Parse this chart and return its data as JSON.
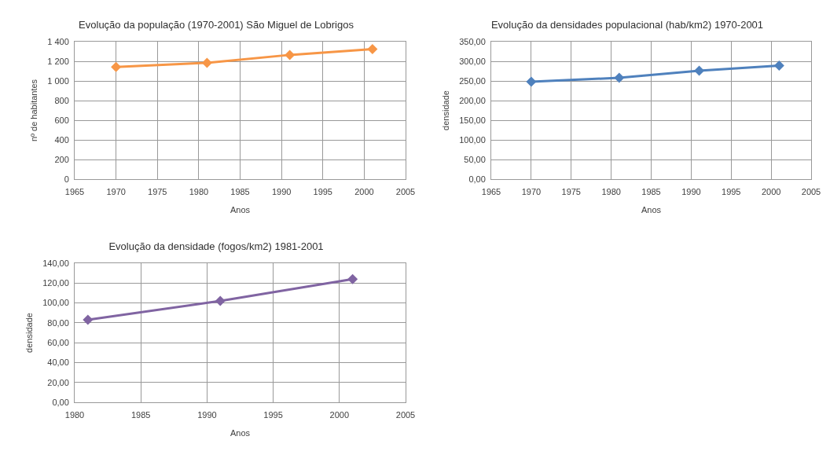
{
  "chart_data": [
    {
      "type": "line",
      "title": "Evolução da população (1970-2001) São Miguel de Lobrigos",
      "xlabel": "Anos",
      "ylabel": "nº de habitantes",
      "x": [
        1970,
        1981,
        1991,
        2001
      ],
      "series": [
        {
          "color": "#f79646",
          "values": [
            1142,
            1185,
            1265,
            1325
          ]
        }
      ],
      "xlim": [
        1965,
        2005
      ],
      "xticks": [
        1965,
        1970,
        1975,
        1980,
        1985,
        1990,
        1995,
        2000,
        2005
      ],
      "ylim": [
        0,
        1400
      ],
      "yticks": [
        0,
        200,
        400,
        600,
        800,
        {
          "value": 1000,
          "label": "1 000"
        },
        {
          "value": 1200,
          "label": "1 200"
        },
        {
          "value": 1400,
          "label": "1 400"
        }
      ],
      "grid": true,
      "marker": "diamond",
      "line_style": "solid"
    },
    {
      "type": "line",
      "title": "Evolução da densidades populacional (hab/km2) 1970-2001",
      "xlabel": "Anos",
      "ylabel": "densidade",
      "x": [
        1970,
        1981,
        1991,
        2001
      ],
      "series": [
        {
          "color": "#4f81bd",
          "values": [
            248,
            258,
            276,
            289
          ]
        }
      ],
      "xlim": [
        1965,
        2005
      ],
      "xticks": [
        1965,
        1970,
        1975,
        1980,
        1985,
        1990,
        1995,
        2000,
        2005
      ],
      "ylim": [
        0,
        350
      ],
      "yticks": [
        {
          "value": 0,
          "label": "0,00"
        },
        {
          "value": 50,
          "label": "50,00"
        },
        {
          "value": 100,
          "label": "100,00"
        },
        {
          "value": 150,
          "label": "150,00"
        },
        {
          "value": 200,
          "label": "200,00"
        },
        {
          "value": 250,
          "label": "250,00"
        },
        {
          "value": 300,
          "label": "300,00"
        },
        {
          "value": 350,
          "label": "350,00"
        }
      ],
      "grid": true,
      "marker": "diamond",
      "line_style": "solid"
    },
    {
      "type": "line",
      "title": "Evolução da densidade (fogos/km2) 1981-2001",
      "xlabel": "Anos",
      "ylabel": "densidade",
      "x": [
        1981,
        1991,
        2001
      ],
      "series": [
        {
          "color": "#8064a2",
          "values": [
            83,
            102,
            124
          ]
        }
      ],
      "xlim": [
        1980,
        2005
      ],
      "xticks": [
        1980,
        1985,
        1990,
        1995,
        2000,
        2005
      ],
      "ylim": [
        0,
        140
      ],
      "yticks": [
        {
          "value": 0,
          "label": "0,00"
        },
        {
          "value": 20,
          "label": "20,00"
        },
        {
          "value": 40,
          "label": "40,00"
        },
        {
          "value": 60,
          "label": "60,00"
        },
        {
          "value": 80,
          "label": "80,00"
        },
        {
          "value": 100,
          "label": "100,00"
        },
        {
          "value": 120,
          "label": "120,00"
        },
        {
          "value": 140,
          "label": "140,00"
        }
      ],
      "grid": true,
      "marker": "diamond",
      "line_style": "solid"
    }
  ]
}
